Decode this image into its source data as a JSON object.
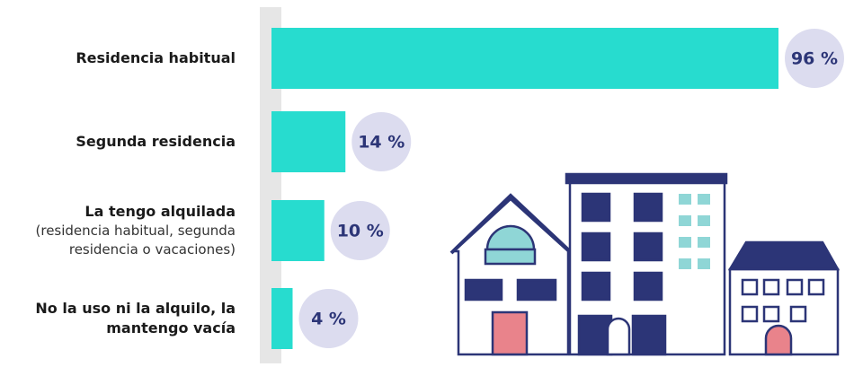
{
  "chart_data": {
    "type": "bar",
    "orientation": "horizontal",
    "categories": [
      "Residencia habitual",
      "Segunda residencia",
      "La tengo alquilada",
      "No la uso ni la alquilo, la mantengo vacía"
    ],
    "category_notes": [
      null,
      null,
      "(residencia habitual, segunda residencia o vacaciones)",
      null
    ],
    "values": [
      96,
      14,
      10,
      4
    ],
    "value_labels": [
      "96 %",
      "14 %",
      "10 %",
      "4 %"
    ],
    "color": "#27dccf",
    "xlim": [
      0,
      100
    ]
  }
}
